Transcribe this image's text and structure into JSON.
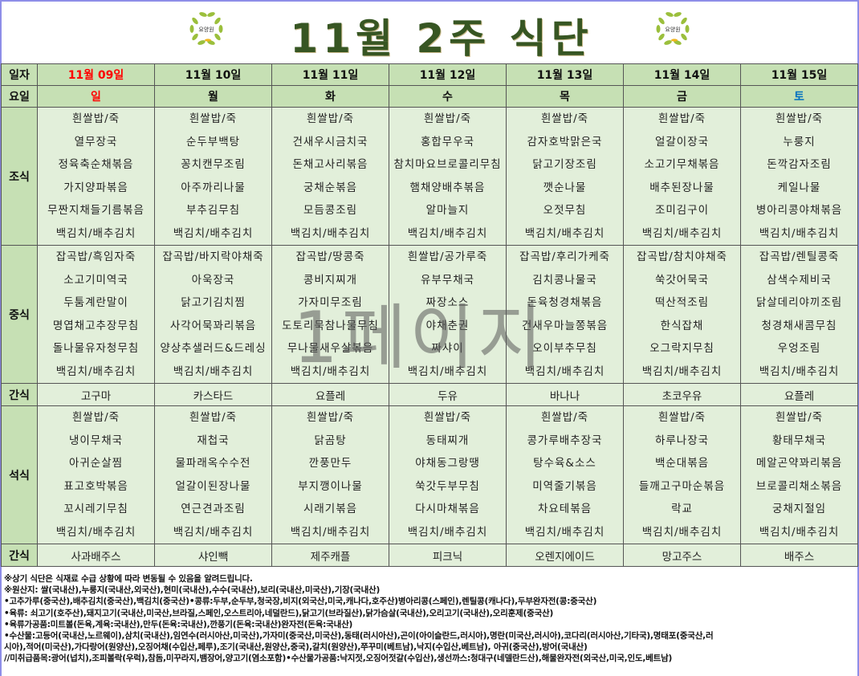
{
  "header": {
    "title": "11월 2주 식단표",
    "logo_text": "요양원"
  },
  "colors": {
    "title": "#375623",
    "header_bg": "#c6e0b4",
    "cell_bg": "#e2efda",
    "sunday": "#ff0000",
    "saturday": "#0070c0"
  },
  "labels": {
    "date": "일자",
    "weekday": "요일",
    "breakfast": "조식",
    "lunch": "중식",
    "snack1": "간식",
    "dinner": "석식",
    "snack2": "간식"
  },
  "days": [
    {
      "date": "11월 09일",
      "weekday": "일",
      "breakfast": [
        "흰쌀밥/죽",
        "열무장국",
        "정육축순채볶음",
        "가지양파볶음",
        "무짠지채들기름볶음",
        "백김치/배추김치"
      ],
      "lunch": [
        "잡곡밥/흑임자죽",
        "소고기미역국",
        "두툼계란말이",
        "명엽채고추장무침",
        "돌나물유자청무침",
        "백김치/배추김치"
      ],
      "snack1": "고구마",
      "dinner": [
        "흰쌀밥/죽",
        "냉이무채국",
        "아귀순살찜",
        "표고호박볶음",
        "꼬시레기무침",
        "백김치/배추김치"
      ],
      "snack2": "사과배주스"
    },
    {
      "date": "11월 10일",
      "weekday": "월",
      "breakfast": [
        "흰쌀밥/죽",
        "순두부백탕",
        "꽁치캔무조림",
        "아주까리나물",
        "부추김무침",
        "백김치/배추김치"
      ],
      "lunch": [
        "잡곡밥/바지락야채죽",
        "아욱장국",
        "닭고기김치찜",
        "사각어묵꽈리볶음",
        "양상추샐러드&드레싱",
        "백김치/배추김치"
      ],
      "snack1": "카스타드",
      "dinner": [
        "흰쌀밥/죽",
        "재첩국",
        "물파래옥수수전",
        "얼갈이된장나물",
        "연근견과조림",
        "백김치/배추김치"
      ],
      "snack2": "샤인빽"
    },
    {
      "date": "11월 11일",
      "weekday": "화",
      "breakfast": [
        "흰쌀밥/죽",
        "건새우시금치국",
        "돈채고사리볶음",
        "궁채순볶음",
        "모듬콩조림",
        "백김치/배추김치"
      ],
      "lunch": [
        "잡곡밥/땅콩죽",
        "콩비지찌개",
        "가자미무조림",
        "도토리묵참나물무침",
        "무나물새우살볶음",
        "백김치/배추김치"
      ],
      "snack1": "요플레",
      "dinner": [
        "흰쌀밥/죽",
        "닭곰탕",
        "깐풍만두",
        "부지깽이나물",
        "시래기볶음",
        "백김치/배추김치"
      ],
      "snack2": "제주캐플"
    },
    {
      "date": "11월 12일",
      "weekday": "수",
      "breakfast": [
        "흰쌀밥/죽",
        "홍합무우국",
        "참치마요브로콜리무침",
        "햄채양배추볶음",
        "알마늘지",
        "백김치/배추김치"
      ],
      "lunch": [
        "흰쌀밥/공가루죽",
        "유부무채국",
        "짜장소스",
        "야채춘권",
        "짜샤이",
        "백김치/배추김치"
      ],
      "snack1": "두유",
      "dinner": [
        "흰쌀밥/죽",
        "동태찌개",
        "야채동그랑땡",
        "쑥갓두부무침",
        "다시마채볶음",
        "백김치/배추김치"
      ],
      "snack2": "피크닉"
    },
    {
      "date": "11월 13일",
      "weekday": "목",
      "breakfast": [
        "흰쌀밥/죽",
        "감자호박맑은국",
        "닭고기장조림",
        "깻순나물",
        "오젓무침",
        "백김치/배추김치"
      ],
      "lunch": [
        "잡곡밥/후리가케죽",
        "김치콩나물국",
        "돈육청경채볶음",
        "건새우마늘쫑볶음",
        "오이부추무침",
        "백김치/배추김치"
      ],
      "snack1": "바나나",
      "dinner": [
        "흰쌀밥/죽",
        "콩가루배추장국",
        "탕수육&소스",
        "미역줄기볶음",
        "차요테볶음",
        "백김치/배추김치"
      ],
      "snack2": "오렌지에이드"
    },
    {
      "date": "11월 14일",
      "weekday": "금",
      "breakfast": [
        "흰쌀밥/죽",
        "얼갈이장국",
        "소고기무채볶음",
        "배추된장나물",
        "조미김구이",
        "백김치/배추김치"
      ],
      "lunch": [
        "잡곡밥/참치야채죽",
        "쑥갓어묵국",
        "떡산적조림",
        "한식잡채",
        "오그락지무침",
        "백김치/배추김치"
      ],
      "snack1": "초코우유",
      "dinner": [
        "흰쌀밥/죽",
        "하루나장국",
        "백순대볶음",
        "들깨고구마순볶음",
        "락교",
        "백김치/배추김치"
      ],
      "snack2": "망고주스"
    },
    {
      "date": "11월 15일",
      "weekday": "토",
      "breakfast": [
        "흰쌀밥/죽",
        "누룽지",
        "돈깍감자조림",
        "케일나물",
        "병아리콩야채볶음",
        "백김치/배추김치"
      ],
      "lunch": [
        "잡곡밥/렌틸콩죽",
        "삼색수제비국",
        "닭살데리야끼조림",
        "청경채새콤무침",
        "우엉조림",
        "백김치/배추김치"
      ],
      "snack1": "요플레",
      "dinner": [
        "흰쌀밥/죽",
        "황태무채국",
        "메알곤약꽈리볶음",
        "브로콜리채소볶음",
        "궁채지절임",
        "백김치/배추김치"
      ],
      "snack2": "배주스"
    }
  ],
  "watermark": "1페이지",
  "notes": [
    "※상기 식단은 식재료 수급 상황에 따라 변동될 수 있음을 알려드립니다.",
    "※원산지: 쌀(국내산),누룽지(국내산,외국산),현미(국내산),수수(국내산),보리(국내산,미국산),기장(국내산)",
    "•고추가루(중국산),배추김치(중국산),백김치(중국산)•콩류:두부,순두부,청국장,비지(외국산,미국,캐나다,호주산)병아리콩(스페인),렌틸콩(캐나다),두부완자전(콩:중국산)",
    "•육류: 쇠고기(호주산),돼지고기(국내산,미국산,브라질,스페인,오스트리아,네덜란드),닭고기(브라질산),닭가슴살(국내산),오리고기(국내산),오리훈제(중국산)",
    "•육류가공품:미트볼(돈육,계육:국내산),만두(돈육:국내산),깐풍기(돈육:국내산)완자전(돈육:국내산)",
    "•수산물:고등어(국내산,노르웨이),삼치(국내산),임연수(러시아산,미국산),가자미(중국산,미국산),동태(러시아산),곤이(아이슬란드,러시아),명란(미국산,러시아),코다리(러시아산,기타국),명태포(중국산,러",
    "시아),적어(미국산),가다랑어(원양산),오징어채(수입산,페루),조기(국내산,원양산,중국),갈치(원양산),쭈꾸미(베트남),낙지(수입산,베트남), 아귀(중국산),방어(국내산)",
    " //미취급품목:광어(넙치),조피볼락(우럭),참돔,미꾸라지,뱀장어,양고기(염소포함)•수산물가공품:낙지젓,오징어젓갈(수입산),생선까스:청대구(네델란드산),해물완자전(외국산,미국,인도,베트남)"
  ]
}
